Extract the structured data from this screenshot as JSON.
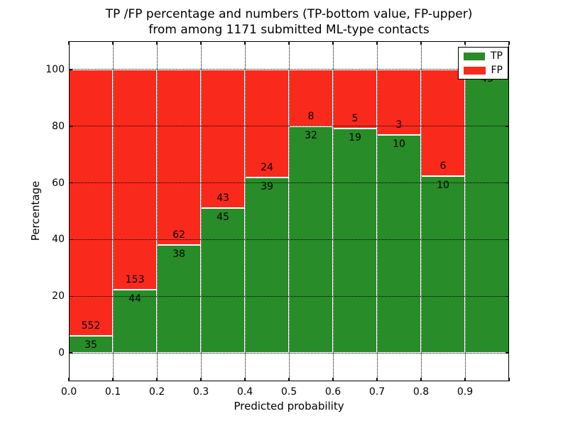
{
  "figure": {
    "title_line1": "TP /FP percentage and numbers (TP-bottom value, FP-upper)",
    "title_line2": "from among 1171 submitted ML-type contacts"
  },
  "chart_data": {
    "type": "bar",
    "stacked": true,
    "normalized": "percent",
    "title": "TP /FP percentage and numbers (TP-bottom value, FP-upper) from among 1171 submitted ML-type contacts",
    "xlabel": "Predicted probability",
    "ylabel": "Percentage",
    "total_submitted": 1171,
    "x_bin_edges": [
      0.0,
      0.1,
      0.2,
      0.3,
      0.4,
      0.5,
      0.6,
      0.7,
      0.8,
      0.9,
      1.0
    ],
    "xticklabels": [
      "0.0",
      "0.1",
      "0.2",
      "0.3",
      "0.4",
      "0.5",
      "0.6",
      "0.7",
      "0.8",
      "0.9"
    ],
    "yticks": [
      0,
      20,
      40,
      60,
      80,
      100
    ],
    "ylim": [
      -10,
      110
    ],
    "xlim": [
      0.0,
      1.0
    ],
    "grid_style": "dotted",
    "legend_position": "upper right",
    "series": [
      {
        "name": "TP",
        "color": "#288c28",
        "values": [
          35,
          44,
          38,
          45,
          39,
          32,
          19,
          10,
          10,
          43
        ]
      },
      {
        "name": "FP",
        "color": "#f92a1c",
        "values": [
          552,
          153,
          62,
          43,
          24,
          8,
          5,
          3,
          6,
          0
        ]
      }
    ],
    "tp_percent_by_bin": [
      6.0,
      22.3,
      38.0,
      51.1,
      61.9,
      80.0,
      79.2,
      76.9,
      62.5,
      100.0
    ]
  }
}
